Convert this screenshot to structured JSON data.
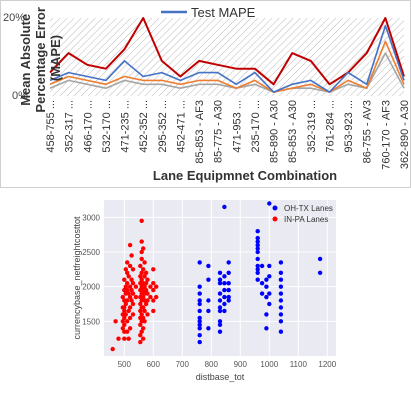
{
  "chart_data": [
    {
      "type": "line",
      "title": "",
      "xlabel": "Lane Equipmnet Combination",
      "ylabel": "Mean Absolute Percentage Error (MAPE)",
      "legend": {
        "placement": "top",
        "entries": [
          "Test MAPE"
        ]
      },
      "ylim": [
        0,
        20
      ],
      "yticks": [
        "20%",
        "0%"
      ],
      "categories": [
        "458-755 ...",
        "352-317 ...",
        "466-170 ...",
        "532-170 ...",
        "471-235 ...",
        "452-352 ...",
        "295-352 ...",
        "452-471 ...",
        "85-853 - AF3",
        "85-775 - A30",
        "471-953 ...",
        "235-170 ...",
        "85-890 - A30",
        "85-853 - A30",
        "352-319 ...",
        "761-284 ...",
        "953-923 ...",
        "86-755 - AV3",
        "760-170 - AF3",
        "362-890 - A30"
      ],
      "series": [
        {
          "name": "Test MAPE",
          "color": "#4472c4",
          "values": [
            4,
            6,
            5,
            4,
            9,
            5,
            6,
            4,
            6,
            6,
            3,
            6,
            1,
            3,
            4,
            1,
            6,
            3,
            18,
            4
          ]
        },
        {
          "color": "#c00000",
          "values": [
            6,
            11,
            8,
            7,
            12,
            20,
            9,
            5,
            9,
            8,
            7,
            7,
            3,
            11,
            9,
            3,
            6,
            11,
            20,
            5
          ]
        },
        {
          "color": "#ed7d31",
          "values": [
            3,
            5,
            4,
            3,
            5,
            4,
            4,
            3,
            4,
            4,
            2,
            4,
            1,
            2,
            3,
            1,
            4,
            2,
            14,
            3
          ]
        },
        {
          "color": "#a5a5a5",
          "values": [
            2,
            4,
            3,
            2,
            4,
            3,
            3,
            2,
            3,
            3,
            2,
            3,
            1,
            2,
            2,
            1,
            3,
            2,
            11,
            2
          ]
        }
      ],
      "grid": false
    },
    {
      "type": "scatter",
      "title": "",
      "xlabel": "distbase_tot",
      "ylabel": "currencybase_netfreightcosttot",
      "xlim": [
        430,
        1230
      ],
      "ylim": [
        1000,
        3250
      ],
      "xticks": [
        500,
        600,
        700,
        800,
        900,
        1000,
        1100,
        1200
      ],
      "yticks": [
        1500,
        2000,
        2500,
        3000
      ],
      "grid": true,
      "legend": {
        "placement": "top-right",
        "entries": [
          "OH-TX Lanes",
          "IN-PA Lanes"
        ]
      },
      "series": [
        {
          "name": "OH-TX Lanes",
          "color": "#0000ff",
          "points": [
            [
              760,
              1900
            ],
            [
              760,
              1800
            ],
            [
              760,
              1650
            ],
            [
              760,
              1500
            ],
            [
              760,
              1400
            ],
            [
              760,
              1300
            ],
            [
              760,
              1200
            ],
            [
              760,
              1550
            ],
            [
              760,
              2350
            ],
            [
              760,
              2000
            ],
            [
              760,
              1750
            ],
            [
              760,
              1450
            ],
            [
              790,
              1800
            ],
            [
              790,
              2100
            ],
            [
              790,
              2300
            ],
            [
              790,
              1650
            ],
            [
              790,
              1400
            ],
            [
              830,
              2200
            ],
            [
              830,
              2050
            ],
            [
              830,
              1900
            ],
            [
              830,
              1800
            ],
            [
              830,
              1700
            ],
            [
              830,
              1650
            ],
            [
              830,
              1500
            ],
            [
              830,
              1450
            ],
            [
              830,
              1350
            ],
            [
              830,
              2100
            ],
            [
              845,
              3150
            ],
            [
              845,
              2150
            ],
            [
              845,
              2050
            ],
            [
              845,
              1950
            ],
            [
              845,
              1850
            ],
            [
              845,
              1750
            ],
            [
              845,
              1650
            ],
            [
              860,
              2350
            ],
            [
              860,
              2200
            ],
            [
              860,
              2050
            ],
            [
              860,
              1950
            ],
            [
              860,
              1850
            ],
            [
              860,
              1800
            ],
            [
              960,
              2800
            ],
            [
              960,
              2700
            ],
            [
              960,
              2650
            ],
            [
              960,
              2600
            ],
            [
              960,
              2550
            ],
            [
              960,
              2500
            ],
            [
              960,
              2400
            ],
            [
              960,
              2300
            ],
            [
              960,
              2250
            ],
            [
              960,
              2200
            ],
            [
              960,
              2100
            ],
            [
              975,
              1900
            ],
            [
              975,
              2050
            ],
            [
              975,
              2300
            ],
            [
              990,
              2100
            ],
            [
              990,
              2000
            ],
            [
              990,
              1850
            ],
            [
              990,
              1600
            ],
            [
              990,
              1400
            ],
            [
              1000,
              3200
            ],
            [
              1000,
              2300
            ],
            [
              1000,
              2150
            ],
            [
              1000,
              1900
            ],
            [
              1000,
              1750
            ],
            [
              1040,
              2350
            ],
            [
              1040,
              2200
            ],
            [
              1040,
              2100
            ],
            [
              1040,
              2000
            ],
            [
              1040,
              1900
            ],
            [
              1040,
              1800
            ],
            [
              1040,
              1700
            ],
            [
              1040,
              1600
            ],
            [
              1040,
              1500
            ],
            [
              1040,
              1350
            ],
            [
              1175,
              2400
            ],
            [
              1175,
              2200
            ]
          ]
        },
        {
          "name": "IN-PA Lanes",
          "color": "#ff0000",
          "points": [
            [
              460,
              1100
            ],
            [
              470,
              1500
            ],
            [
              480,
              1250
            ],
            [
              495,
              1700
            ],
            [
              495,
              1600
            ],
            [
              495,
              1500
            ],
            [
              495,
              1850
            ],
            [
              495,
              1400
            ],
            [
              500,
              2100
            ],
            [
              500,
              1950
            ],
            [
              500,
              1800
            ],
            [
              500,
              1700
            ],
            [
              500,
              1550
            ],
            [
              500,
              1450
            ],
            [
              500,
              1350
            ],
            [
              500,
              1250
            ],
            [
              500,
              1650
            ],
            [
              505,
              2250
            ],
            [
              505,
              2000
            ],
            [
              505,
              1900
            ],
            [
              505,
              1750
            ],
            [
              505,
              1600
            ],
            [
              510,
              2350
            ],
            [
              510,
              2200
            ],
            [
              510,
              2050
            ],
            [
              510,
              1950
            ],
            [
              510,
              1800
            ],
            [
              510,
              1500
            ],
            [
              510,
              1350
            ],
            [
              515,
              2150
            ],
            [
              515,
              1900
            ],
            [
              515,
              1650
            ],
            [
              515,
              1250
            ],
            [
              520,
              2600
            ],
            [
              520,
              2300
            ],
            [
              520,
              2000
            ],
            [
              520,
              1850
            ],
            [
              520,
              1700
            ],
            [
              520,
              1550
            ],
            [
              520,
              1400
            ],
            [
              525,
              2450
            ],
            [
              525,
              2100
            ],
            [
              525,
              1950
            ],
            [
              525,
              1800
            ],
            [
              530,
              2250
            ],
            [
              530,
              2050
            ],
            [
              530,
              1900
            ],
            [
              530,
              1750
            ],
            [
              530,
              1600
            ],
            [
              540,
              2000
            ],
            [
              540,
              1850
            ],
            [
              555,
              2300
            ],
            [
              555,
              2150
            ],
            [
              555,
              2050
            ],
            [
              555,
              1950
            ],
            [
              555,
              1850
            ],
            [
              555,
              1750
            ],
            [
              555,
              1650
            ],
            [
              555,
              1550
            ],
            [
              555,
              1450
            ],
            [
              555,
              1300
            ],
            [
              555,
              1200
            ],
            [
              560,
              2950
            ],
            [
              560,
              2650
            ],
            [
              560,
              2500
            ],
            [
              560,
              2400
            ],
            [
              560,
              2200
            ],
            [
              560,
              2100
            ],
            [
              560,
              2000
            ],
            [
              560,
              1900
            ],
            [
              560,
              1800
            ],
            [
              560,
              1700
            ],
            [
              560,
              1600
            ],
            [
              560,
              1500
            ],
            [
              560,
              1350
            ],
            [
              565,
              2550
            ],
            [
              565,
              2250
            ],
            [
              565,
              2050
            ],
            [
              565,
              1950
            ],
            [
              565,
              1850
            ],
            [
              565,
              1700
            ],
            [
              565,
              1550
            ],
            [
              565,
              1400
            ],
            [
              565,
              1250
            ],
            [
              570,
              2350
            ],
            [
              570,
              2150
            ],
            [
              570,
              2000
            ],
            [
              570,
              1900
            ],
            [
              570,
              1800
            ],
            [
              570,
              1650
            ],
            [
              570,
              1500
            ],
            [
              575,
              2200
            ],
            [
              575,
              2050
            ],
            [
              575,
              1950
            ],
            [
              575,
              1750
            ],
            [
              580,
              2100
            ],
            [
              580,
              1900
            ],
            [
              580,
              1800
            ],
            [
              580,
              1600
            ],
            [
              590,
              2000
            ],
            [
              590,
              1850
            ],
            [
              600,
              2250
            ],
            [
              600,
              2050
            ],
            [
              600,
              1950
            ],
            [
              600,
              1800
            ],
            [
              600,
              1650
            ],
            [
              610,
              2000
            ],
            [
              610,
              1850
            ]
          ]
        }
      ]
    }
  ]
}
